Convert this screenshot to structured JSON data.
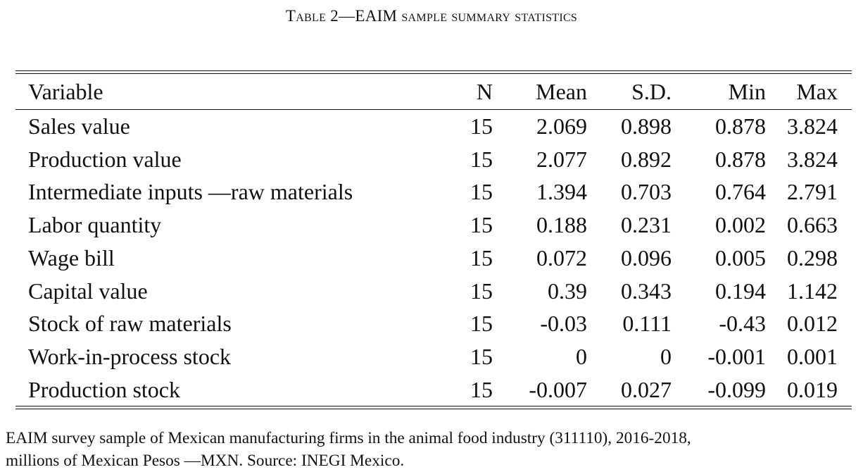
{
  "caption": {
    "prefix": "Table 2",
    "dash": "—",
    "main": "EAIM sample summary statistics"
  },
  "table": {
    "headers": [
      "Variable",
      "N",
      "Mean",
      "S.D.",
      "Min",
      "Max"
    ],
    "rows": [
      [
        "Sales value",
        "15",
        "2.069",
        "0.898",
        "0.878",
        "3.824"
      ],
      [
        "Production value",
        "15",
        "2.077",
        "0.892",
        "0.878",
        "3.824"
      ],
      [
        "Intermediate inputs —raw materials",
        "15",
        "1.394",
        "0.703",
        "0.764",
        "2.791"
      ],
      [
        "Labor quantity",
        "15",
        "0.188",
        "0.231",
        "0.002",
        "0.663"
      ],
      [
        "Wage bill",
        "15",
        "0.072",
        "0.096",
        "0.005",
        "0.298"
      ],
      [
        "Capital value",
        "15",
        "0.39",
        "0.343",
        "0.194",
        "1.142"
      ],
      [
        "Stock of raw materials",
        "15",
        "-0.03",
        "0.111",
        "-0.43",
        "0.012"
      ],
      [
        "Work-in-process stock",
        "15",
        "0",
        "0",
        "-0.001",
        "0.001"
      ],
      [
        "Production stock",
        "15",
        "-0.007",
        "0.027",
        "-0.099",
        "0.019"
      ]
    ]
  },
  "note": {
    "line1": "EAIM survey sample of Mexican manufacturing firms in the animal food industry (311110), 2016-2018,",
    "line2": "millions of Mexican Pesos —MXN. Source: INEGI Mexico."
  }
}
